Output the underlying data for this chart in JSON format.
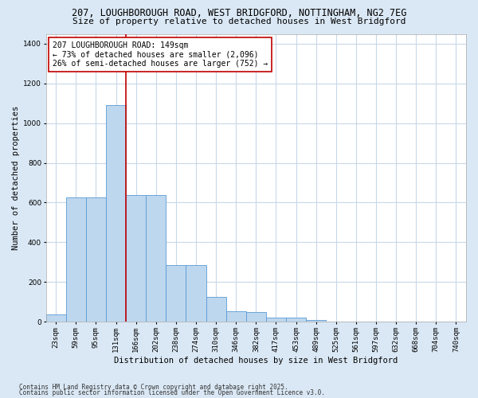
{
  "title_line1": "207, LOUGHBOROUGH ROAD, WEST BRIDGFORD, NOTTINGHAM, NG2 7EG",
  "title_line2": "Size of property relative to detached houses in West Bridgford",
  "xlabel": "Distribution of detached houses by size in West Bridgford",
  "ylabel": "Number of detached properties",
  "categories": [
    "23sqm",
    "59sqm",
    "95sqm",
    "131sqm",
    "166sqm",
    "202sqm",
    "238sqm",
    "274sqm",
    "310sqm",
    "346sqm",
    "382sqm",
    "417sqm",
    "453sqm",
    "489sqm",
    "525sqm",
    "561sqm",
    "597sqm",
    "632sqm",
    "668sqm",
    "704sqm",
    "740sqm"
  ],
  "values": [
    35,
    625,
    625,
    1090,
    640,
    640,
    285,
    285,
    125,
    52,
    47,
    22,
    22,
    7,
    0,
    0,
    0,
    0,
    0,
    0,
    0
  ],
  "bar_color": "#bdd7ee",
  "bar_edge_color": "#5b9bd5",
  "vline_x_index": 3.5,
  "vline_color": "#c00000",
  "annotation_text": "207 LOUGHBOROUGH ROAD: 149sqm\n← 73% of detached houses are smaller (2,096)\n26% of semi-detached houses are larger (752) →",
  "annotation_box_color": "#ffffff",
  "annotation_box_edge_color": "#c00000",
  "ylim": [
    0,
    1450
  ],
  "yticks": [
    0,
    200,
    400,
    600,
    800,
    1000,
    1200,
    1400
  ],
  "fig_bg_color": "#dae8f5",
  "plot_bg_color": "#ffffff",
  "footer_line1": "Contains HM Land Registry data © Crown copyright and database right 2025.",
  "footer_line2": "Contains public sector information licensed under the Open Government Licence v3.0.",
  "grid_color": "#c8d8e8",
  "title_fontsize": 8.5,
  "subtitle_fontsize": 8,
  "axis_label_fontsize": 7.5,
  "tick_fontsize": 6.5,
  "annotation_fontsize": 7,
  "footer_fontsize": 5.5
}
